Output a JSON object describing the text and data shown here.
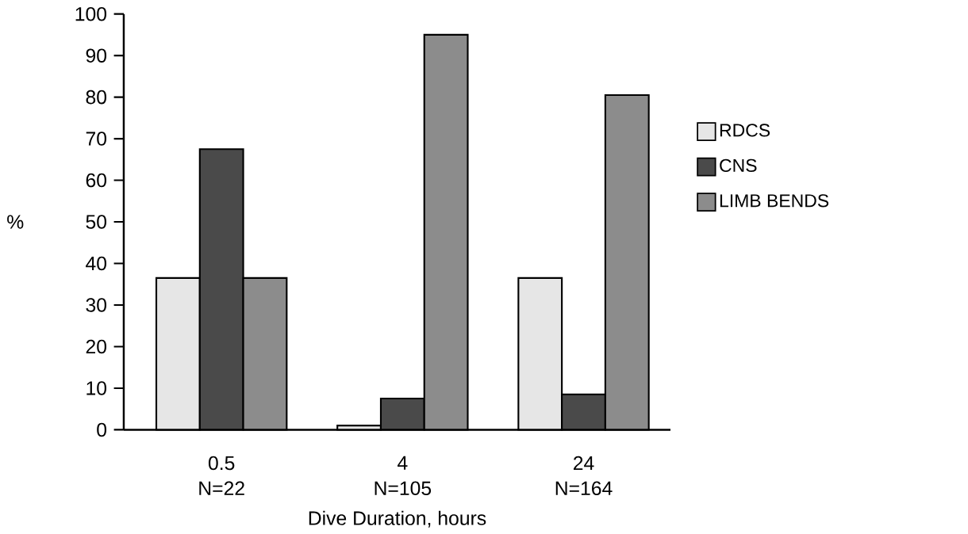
{
  "chart_data": {
    "type": "bar",
    "xlabel": "Dive Duration,  hours",
    "ylabel": "%",
    "categories": [
      "0.5",
      "4",
      "24"
    ],
    "series": [
      {
        "name": "RDCS",
        "color": "#e6e6e6",
        "values": [
          36.5,
          1,
          36.5
        ]
      },
      {
        "name": "CNS",
        "color": "#4a4a4a",
        "values": [
          67.5,
          7.5,
          8.5
        ]
      },
      {
        "name": "LIMB BENDS",
        "color": "#8c8c8c",
        "values": [
          36.5,
          95,
          80.5
        ]
      }
    ],
    "ylim": [
      0,
      100
    ],
    "yticks": [
      0,
      10,
      20,
      30,
      40,
      50,
      60,
      70,
      80,
      90,
      100
    ],
    "legend": "right",
    "annotations": [
      "N=22",
      "N=105",
      "N=164"
    ]
  }
}
